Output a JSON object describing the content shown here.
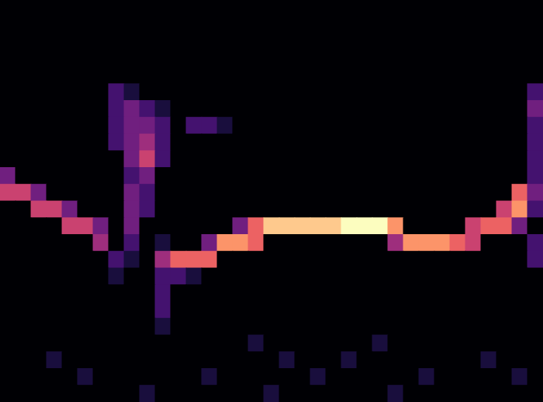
{
  "chart_data": {
    "type": "heatmap",
    "tick_labels": false,
    "color_range": [
      0,
      9
    ],
    "cells": [
      [
        0,
        0,
        0,
        0,
        0,
        0,
        0,
        0,
        0,
        0,
        0,
        0,
        0,
        0,
        0,
        0,
        0,
        0,
        0,
        0,
        0,
        0,
        0,
        0,
        0,
        0,
        0,
        0,
        0,
        0,
        0,
        0,
        0,
        0,
        0
      ],
      [
        0,
        0,
        0,
        0,
        0,
        0,
        0,
        0,
        0,
        0,
        0,
        0,
        0,
        0,
        0,
        0,
        0,
        0,
        0,
        0,
        0,
        0,
        0,
        0,
        0,
        0,
        0,
        0,
        0,
        0,
        0,
        0,
        0,
        0,
        0
      ],
      [
        0,
        0,
        0,
        0,
        0,
        0,
        0,
        0,
        0,
        0,
        0,
        0,
        0,
        0,
        0,
        0,
        0,
        0,
        0,
        0,
        0,
        0,
        0,
        0,
        0,
        0,
        0,
        0,
        0,
        0,
        0,
        0,
        0,
        0,
        0
      ],
      [
        0,
        0,
        0,
        0,
        0,
        0,
        0,
        0,
        0,
        0,
        0,
        0,
        0,
        0,
        0,
        0,
        0,
        0,
        0,
        0,
        0,
        0,
        0,
        0,
        0,
        0,
        0,
        0,
        0,
        0,
        0,
        0,
        0,
        0,
        0
      ],
      [
        0,
        0,
        0,
        0,
        0,
        0,
        0,
        0,
        0,
        0,
        0,
        0,
        0,
        0,
        0,
        0,
        0,
        0,
        0,
        0,
        0,
        0,
        0,
        0,
        0,
        0,
        0,
        0,
        0,
        0,
        0,
        0,
        0,
        0,
        0
      ],
      [
        0,
        0,
        0,
        0,
        0,
        0,
        0,
        2,
        1,
        0,
        0,
        0,
        0,
        0,
        0,
        0,
        0,
        0,
        0,
        0,
        0,
        0,
        0,
        0,
        0,
        0,
        0,
        0,
        0,
        0,
        0,
        0,
        0,
        0,
        2
      ],
      [
        0,
        0,
        0,
        0,
        0,
        0,
        0,
        2,
        3,
        2,
        1,
        0,
        0,
        0,
        0,
        0,
        0,
        0,
        0,
        0,
        0,
        0,
        0,
        0,
        0,
        0,
        0,
        0,
        0,
        0,
        0,
        0,
        0,
        0,
        3
      ],
      [
        0,
        0,
        0,
        0,
        0,
        0,
        0,
        2,
        3,
        3,
        2,
        0,
        2,
        2,
        1,
        0,
        0,
        0,
        0,
        0,
        0,
        0,
        0,
        0,
        0,
        0,
        0,
        0,
        0,
        0,
        0,
        0,
        0,
        0,
        2
      ],
      [
        0,
        0,
        0,
        0,
        0,
        0,
        0,
        2,
        3,
        4,
        2,
        0,
        0,
        0,
        0,
        0,
        0,
        0,
        0,
        0,
        0,
        0,
        0,
        0,
        0,
        0,
        0,
        0,
        0,
        0,
        0,
        0,
        0,
        0,
        2
      ],
      [
        0,
        0,
        0,
        0,
        0,
        0,
        0,
        0,
        3,
        5,
        2,
        0,
        0,
        0,
        0,
        0,
        0,
        0,
        0,
        0,
        0,
        0,
        0,
        0,
        0,
        0,
        0,
        0,
        0,
        0,
        0,
        0,
        0,
        0,
        2
      ],
      [
        3,
        0,
        0,
        0,
        0,
        0,
        0,
        0,
        2,
        3,
        0,
        0,
        0,
        0,
        0,
        0,
        0,
        0,
        0,
        0,
        0,
        0,
        0,
        0,
        0,
        0,
        0,
        0,
        0,
        0,
        0,
        0,
        0,
        0,
        2
      ],
      [
        5,
        5,
        3,
        0,
        0,
        0,
        0,
        0,
        3,
        2,
        0,
        0,
        0,
        0,
        0,
        0,
        0,
        0,
        0,
        0,
        0,
        0,
        0,
        0,
        0,
        0,
        0,
        0,
        0,
        0,
        0,
        0,
        0,
        6,
        3
      ],
      [
        0,
        0,
        5,
        5,
        3,
        0,
        0,
        0,
        3,
        2,
        0,
        0,
        0,
        0,
        0,
        0,
        0,
        0,
        0,
        0,
        0,
        0,
        0,
        0,
        0,
        0,
        0,
        0,
        0,
        0,
        0,
        0,
        5,
        7,
        2
      ],
      [
        0,
        0,
        0,
        0,
        5,
        5,
        3,
        0,
        3,
        0,
        0,
        0,
        0,
        0,
        0,
        3,
        6,
        8,
        8,
        8,
        8,
        8,
        9,
        9,
        9,
        7,
        0,
        0,
        0,
        0,
        5,
        6,
        6,
        3,
        0
      ],
      [
        0,
        0,
        0,
        0,
        0,
        0,
        4,
        0,
        2,
        0,
        1,
        0,
        0,
        3,
        7,
        7,
        6,
        0,
        0,
        0,
        0,
        0,
        0,
        0,
        0,
        4,
        7,
        7,
        7,
        6,
        5,
        0,
        0,
        0,
        2
      ],
      [
        0,
        0,
        0,
        0,
        0,
        0,
        0,
        2,
        1,
        0,
        4,
        6,
        6,
        6,
        0,
        0,
        0,
        0,
        0,
        0,
        0,
        0,
        0,
        0,
        0,
        0,
        0,
        0,
        0,
        0,
        0,
        0,
        0,
        0,
        2
      ],
      [
        0,
        0,
        0,
        0,
        0,
        0,
        0,
        1,
        0,
        0,
        2,
        2,
        1,
        0,
        0,
        0,
        0,
        0,
        0,
        0,
        0,
        0,
        0,
        0,
        0,
        0,
        0,
        0,
        0,
        0,
        0,
        0,
        0,
        0,
        0
      ],
      [
        0,
        0,
        0,
        0,
        0,
        0,
        0,
        0,
        0,
        0,
        2,
        0,
        0,
        0,
        0,
        0,
        0,
        0,
        0,
        0,
        0,
        0,
        0,
        0,
        0,
        0,
        0,
        0,
        0,
        0,
        0,
        0,
        0,
        0,
        0
      ],
      [
        0,
        0,
        0,
        0,
        0,
        0,
        0,
        0,
        0,
        0,
        2,
        0,
        0,
        0,
        0,
        0,
        0,
        0,
        0,
        0,
        0,
        0,
        0,
        0,
        0,
        0,
        0,
        0,
        0,
        0,
        0,
        0,
        0,
        0,
        0
      ],
      [
        0,
        0,
        0,
        0,
        0,
        0,
        0,
        0,
        0,
        0,
        1,
        0,
        0,
        0,
        0,
        0,
        0,
        0,
        0,
        0,
        0,
        0,
        0,
        0,
        0,
        0,
        0,
        0,
        0,
        0,
        0,
        0,
        0,
        0,
        0
      ],
      [
        0,
        0,
        0,
        0,
        0,
        0,
        0,
        0,
        0,
        0,
        0,
        0,
        0,
        0,
        0,
        0,
        1,
        0,
        0,
        0,
        0,
        0,
        0,
        0,
        1,
        0,
        0,
        0,
        0,
        0,
        0,
        0,
        0,
        0,
        0
      ],
      [
        0,
        0,
        0,
        1,
        0,
        0,
        0,
        0,
        0,
        0,
        0,
        0,
        0,
        0,
        0,
        0,
        0,
        0,
        1,
        0,
        0,
        0,
        1,
        0,
        0,
        0,
        0,
        0,
        0,
        0,
        0,
        1,
        0,
        0,
        0
      ],
      [
        0,
        0,
        0,
        0,
        0,
        1,
        0,
        0,
        0,
        0,
        0,
        0,
        0,
        1,
        0,
        0,
        0,
        0,
        0,
        0,
        1,
        0,
        0,
        0,
        0,
        0,
        0,
        1,
        0,
        0,
        0,
        0,
        0,
        1,
        0
      ],
      [
        0,
        0,
        0,
        0,
        0,
        0,
        0,
        0,
        0,
        1,
        0,
        0,
        0,
        0,
        0,
        0,
        0,
        1,
        0,
        0,
        0,
        0,
        0,
        0,
        0,
        1,
        0,
        0,
        0,
        0,
        0,
        0,
        0,
        0,
        0
      ]
    ]
  }
}
